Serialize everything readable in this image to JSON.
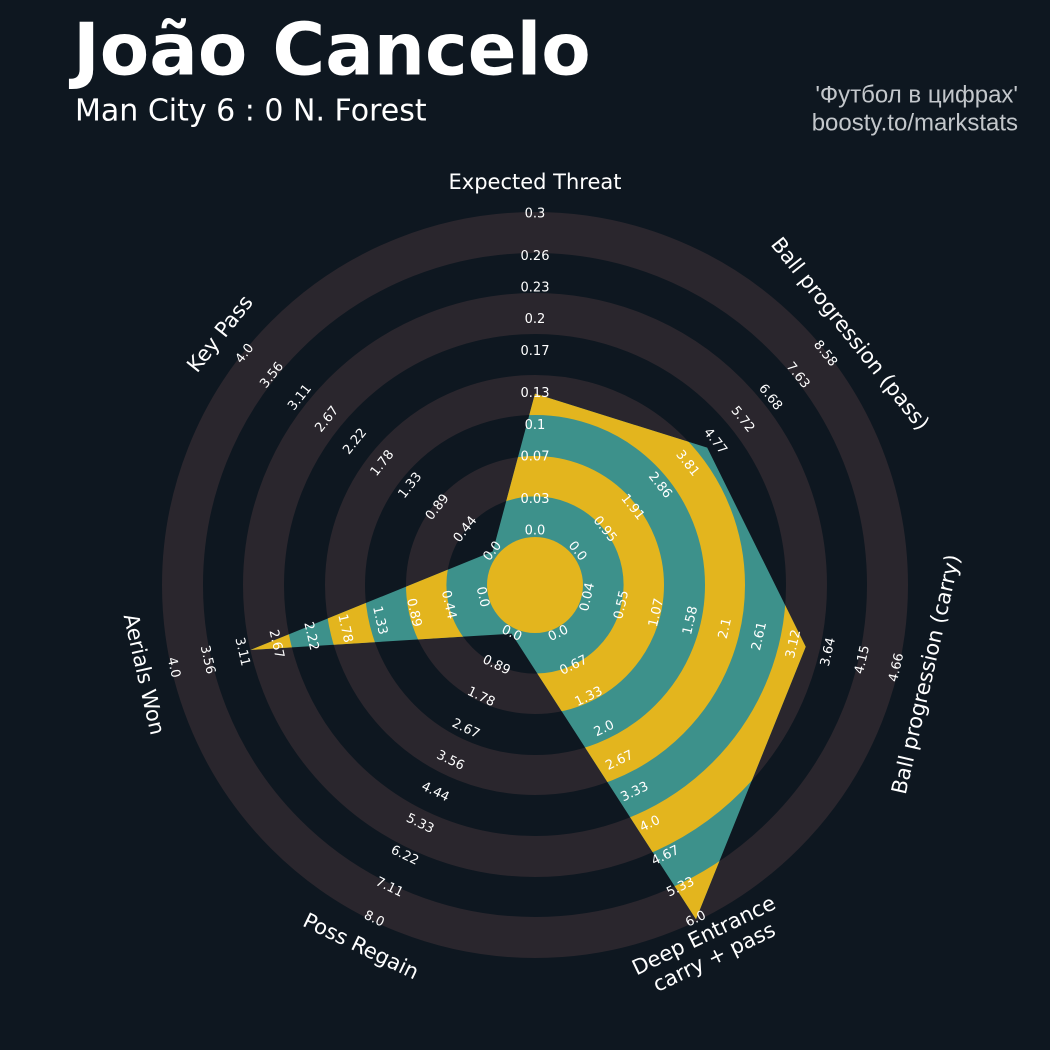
{
  "chart_data": {
    "type": "radar",
    "title": "João Cancelo",
    "subtitle": "Man City 6 : 0 N. Forest",
    "credits": [
      "'Футбол в цифрах'",
      "boosty.to/markstats"
    ],
    "params": [
      "Expected Threat",
      "Ball progression (pass)",
      "Ball progression (carry)",
      "Deep Entrance\ncarry + pass",
      "Poss Regain",
      "Aerials Won",
      "Key Pass"
    ],
    "values": [
      0.13,
      4.5,
      3.3,
      6.0,
      0,
      3.0,
      0
    ],
    "lims": [
      [
        0,
        0.3
      ],
      [
        0,
        8.58
      ],
      [
        0.04,
        4.66
      ],
      [
        0,
        6
      ],
      [
        0,
        8
      ],
      [
        0,
        4
      ],
      [
        0,
        4
      ]
    ],
    "ticks": [
      [
        {
          "value": 0,
          "label": "0.0"
        },
        0.03,
        0.07,
        0.1,
        0.13,
        0.17,
        0.2,
        0.23,
        0.26,
        0.3
      ],
      [
        {
          "value": 0,
          "label": "0.0"
        },
        0.95,
        1.91,
        2.86,
        3.81,
        4.77,
        5.72,
        6.68,
        7.63,
        8.58
      ],
      [
        0.04,
        0.55,
        1.07,
        1.58,
        2.1,
        2.61,
        3.12,
        3.64,
        4.15,
        4.66
      ],
      [
        {
          "value": 0,
          "label": "0.0"
        },
        0.67,
        1.33,
        {
          "value": 2,
          "label": "2.0"
        },
        2.67,
        3.33,
        {
          "value": 4,
          "label": "4.0"
        },
        4.67,
        5.33,
        {
          "value": 6,
          "label": "6.0"
        }
      ],
      [
        {
          "value": 0,
          "label": "0.0"
        },
        0.89,
        1.78,
        2.67,
        3.56,
        4.44,
        5.33,
        6.22,
        7.11,
        {
          "value": 8,
          "label": "8.0"
        }
      ],
      [
        {
          "value": 0,
          "label": "0.0"
        },
        0.44,
        0.89,
        1.33,
        1.78,
        2.22,
        2.67,
        3.11,
        3.56,
        {
          "value": 4,
          "label": "4.0"
        }
      ],
      [
        {
          "value": 0,
          "label": "0.0"
        },
        0.44,
        0.89,
        1.33,
        1.78,
        2.22,
        2.67,
        3.11,
        3.56,
        {
          "value": 4,
          "label": "4.0"
        }
      ]
    ],
    "color": "#3d918b",
    "ring_color": "#2a262d",
    "highlight_color": "#e3b51e",
    "background": "#0e1720"
  }
}
